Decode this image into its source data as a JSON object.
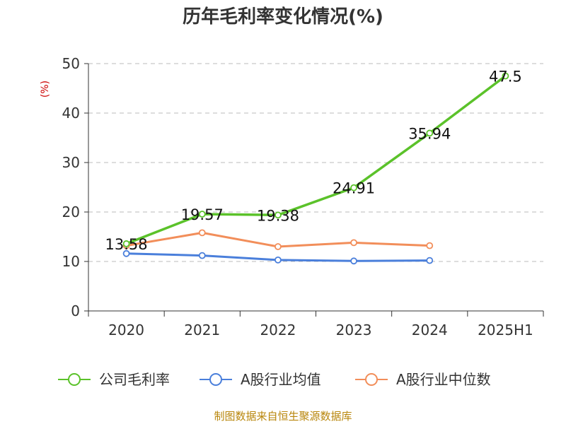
{
  "chart_data": {
    "type": "line",
    "title": "历年毛利率变化情况(%)",
    "ylabel": "(%)",
    "xlabel": "",
    "categories": [
      "2020",
      "2021",
      "2022",
      "2023",
      "2024",
      "2025H1"
    ],
    "ylim": [
      0,
      50
    ],
    "yticks": [
      0,
      10,
      20,
      30,
      40,
      50
    ],
    "grid": true,
    "legend_position": "bottom",
    "series": [
      {
        "name": "公司毛利率",
        "color": "#5bc22a",
        "values": [
          13.58,
          19.57,
          19.38,
          24.91,
          35.94,
          47.5
        ],
        "labels": [
          "13.58",
          "19.57",
          "19.38",
          "24.91",
          "35.94",
          "47.5"
        ]
      },
      {
        "name": "A股行业均值",
        "color": "#4a7fdb",
        "values": [
          11.6,
          11.2,
          10.3,
          10.1,
          10.2,
          null
        ]
      },
      {
        "name": "A股行业中位数",
        "color": "#f28e5a",
        "values": [
          13.2,
          15.8,
          13.0,
          13.8,
          13.2,
          null
        ]
      }
    ]
  },
  "source": "制图数据来自恒生聚源数据库"
}
